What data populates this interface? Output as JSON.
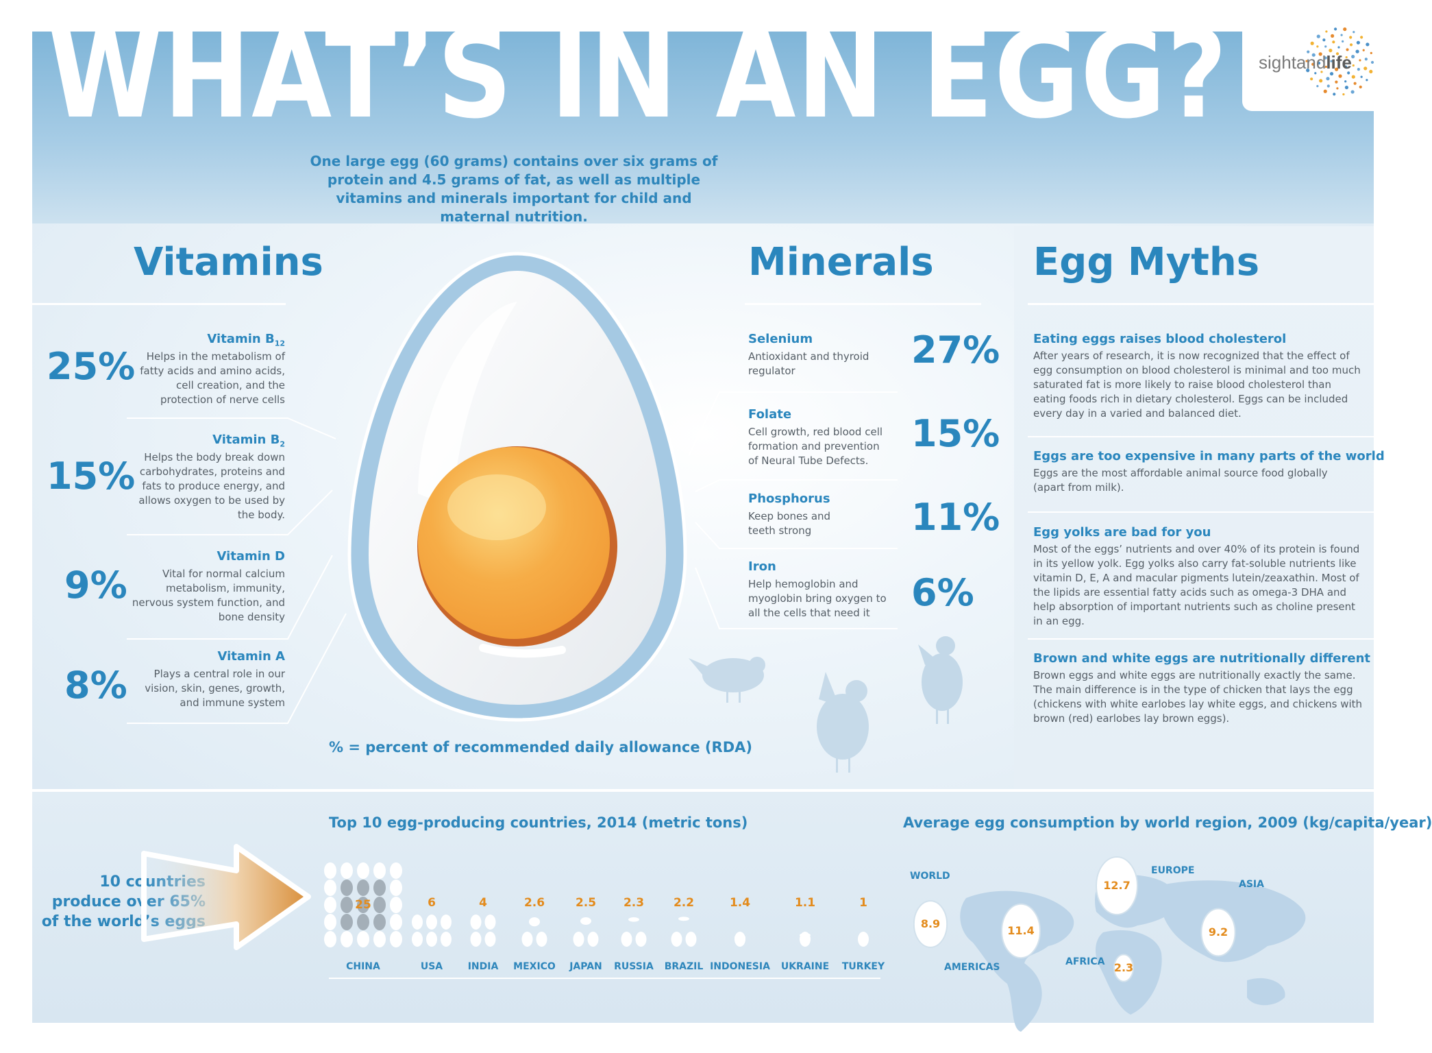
{
  "header": {
    "title": "WHAT’S IN AN EGG?",
    "logo_regular": "sightand",
    "logo_bold": "life"
  },
  "intro": "One large egg (60 grams) contains over six grams of protein and 4.5 grams of fat, as well as multiple vitamins and minerals important for child and maternal nutrition.",
  "vitamins": {
    "title": "Vitamins",
    "items": [
      {
        "percent": "25%",
        "name": "Vitamin B",
        "sub": "12",
        "desc": "Helps in the metabolism of fatty acids and amino acids, cell creation, and the protection of nerve cells"
      },
      {
        "percent": "15%",
        "name": "Vitamin B",
        "sub": "2",
        "desc": "Helps the body break down carbohydrates, proteins and fats to produce energy, and allows oxygen to be used by the body."
      },
      {
        "percent": "9%",
        "name": "Vitamin D",
        "sub": "",
        "desc": "Vital for normal calcium metabolism, immunity, nervous system function, and bone density"
      },
      {
        "percent": "8%",
        "name": "Vitamin A",
        "sub": "",
        "desc": "Plays a central role in our vision, skin, genes, growth, and immune system"
      }
    ]
  },
  "minerals": {
    "title": "Minerals",
    "items": [
      {
        "percent": "27%",
        "name": "Selenium",
        "desc": "Antioxidant and thyroid regulator"
      },
      {
        "percent": "15%",
        "name": "Folate",
        "desc": "Cell growth, red blood cell formation and prevention of Neural Tube Defects."
      },
      {
        "percent": "11%",
        "name": "Phosphorus",
        "desc": "Keep bones and teeth strong"
      },
      {
        "percent": "6%",
        "name": "Iron",
        "desc": "Help hemoglobin and myoglobin bring oxygen to all the cells that need it"
      }
    ]
  },
  "myths": {
    "title": "Egg Myths",
    "items": [
      {
        "title": "Eating eggs raises blood cholesterol",
        "text": "After years of research, it is now recognized that the effect of egg consumption on blood cholesterol is minimal and too much saturated fat is more likely to raise blood cholesterol than eating foods rich in dietary cholesterol. Eggs can be included every day in a varied and balanced diet."
      },
      {
        "title": "Eggs are too expensive in many parts of the world",
        "text": "Eggs are the most affordable animal source food globally (apart from milk)."
      },
      {
        "title": "Egg yolks are bad for you",
        "text": "Most of the eggs’ nutrients and over 40% of its protein is found in its yellow yolk. Egg yolks also carry fat-soluble nutrients like vitamin D, E, A and macular pigments lutein/zeaxathin. Most of the lipids are essential fatty acids such as omega-3 DHA and help absorption of important nutrients such as choline present in an egg."
      },
      {
        "title": "Brown and white eggs are nutritionally different",
        "text": "Brown eggs and white eggs are nutritionally exactly the same. The main difference is in the type of chicken that lays the egg (chickens with white earlobes lay white eggs, and chickens with brown (red) earlobes lay brown eggs)."
      }
    ]
  },
  "rda_note": "% = percent of recommended daily allowance (RDA)",
  "produce_note": "10 countries produce over 65% of the world’s eggs",
  "chart_data": [
    {
      "type": "bar",
      "title": "Top 10 egg-producing countries, 2014 (metric tons)",
      "categories": [
        "CHINA",
        "USA",
        "INDIA",
        "MEXICO",
        "JAPAN",
        "RUSSIA",
        "BRAZIL",
        "INDONESIA",
        "UKRAINE",
        "TURKEY"
      ],
      "value_labels": [
        "25",
        "6",
        "4",
        "2.6",
        "2.5",
        "2.3",
        "2.2",
        "1.4",
        "1.1",
        "1"
      ],
      "values": [
        25,
        6,
        4,
        2.6,
        2.5,
        2.3,
        2.2,
        1.4,
        1.1,
        1
      ],
      "colors": {
        "value": "#e38b1c",
        "label": "#2e86bb",
        "egg": "#ffffff"
      }
    },
    {
      "type": "map",
      "title": "Average egg consumption by world region, 2009 (kg/capita/year)",
      "regions": [
        {
          "name": "WORLD",
          "value": 8.9,
          "value_label": "8.9"
        },
        {
          "name": "AMERICAS",
          "value": 11.4,
          "value_label": "11.4"
        },
        {
          "name": "EUROPE",
          "value": 12.7,
          "value_label": "12.7"
        },
        {
          "name": "AFRICA",
          "value": 2.3,
          "value_label": "2.3"
        },
        {
          "name": "ASIA",
          "value": 9.2,
          "value_label": "9.2"
        }
      ]
    }
  ]
}
